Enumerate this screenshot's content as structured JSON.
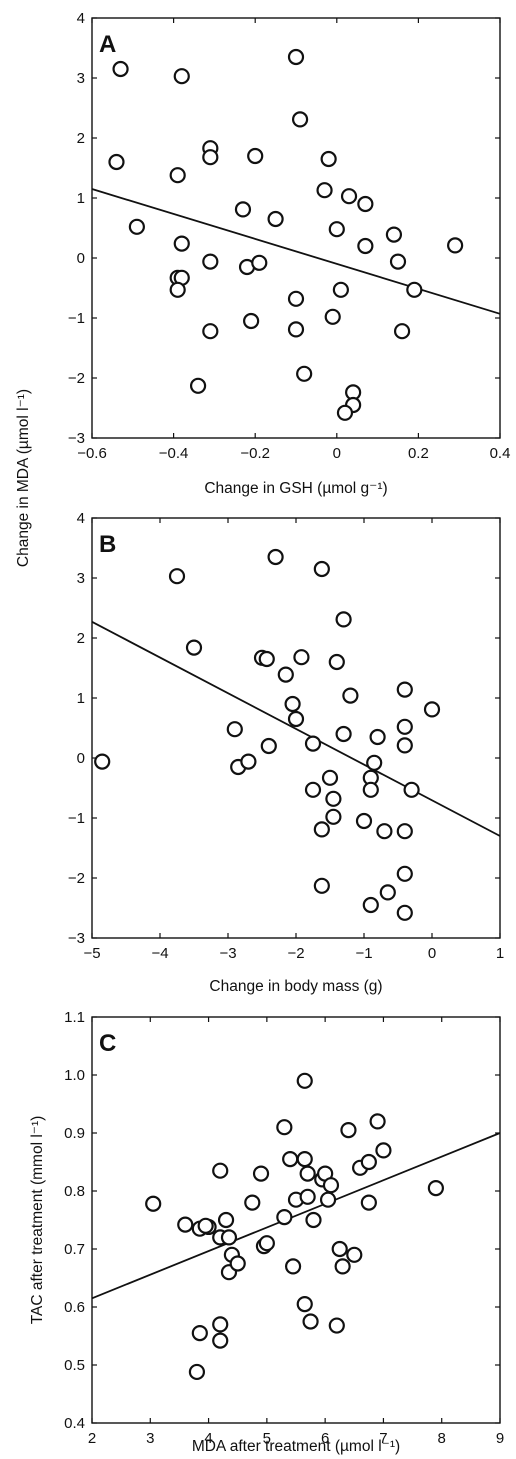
{
  "shared_ylabel_AB": "Change in MDA (µmol l⁻¹)",
  "chart_data": [
    {
      "panel": "A",
      "type": "scatter",
      "xlabel": "Change in GSH (µmol g⁻¹)",
      "ylabel": "Change in MDA (µmol l⁻¹)",
      "xlim": [
        -0.6,
        0.4
      ],
      "ylim": [
        -3,
        4
      ],
      "xticks": [
        -0.6,
        -0.4,
        -0.2,
        0,
        0.2,
        0.4
      ],
      "xtick_labels": [
        "−0.6",
        "−0.4",
        "−0.2",
        "0",
        "0.2",
        "0.4"
      ],
      "yticks": [
        -3,
        -2,
        -1,
        0,
        1,
        2,
        3,
        4
      ],
      "ytick_labels": [
        "−3",
        "−2",
        "−1",
        "0",
        "1",
        "2",
        "3",
        "4"
      ],
      "fit_line": {
        "x": [
          -0.6,
          0.4
        ],
        "y": [
          1.15,
          -0.93
        ]
      },
      "x": [
        -0.53,
        -0.38,
        -0.1,
        -0.54,
        -0.31,
        -0.31,
        -0.2,
        -0.09,
        -0.02,
        -0.39,
        -0.49,
        -0.03,
        0.03,
        0.07,
        -0.23,
        -0.15,
        0.0,
        -0.38,
        -0.22,
        -0.19,
        0.07,
        0.14,
        0.29,
        -0.31,
        -0.39,
        -0.38,
        -0.39,
        0.15,
        0.19,
        0.01,
        -0.21,
        -0.1,
        -0.1,
        -0.01,
        -0.31,
        0.16,
        -0.34,
        -0.08,
        0.04,
        0.04,
        0.02
      ],
      "y": [
        3.15,
        3.03,
        3.35,
        1.6,
        1.83,
        1.68,
        1.7,
        2.31,
        1.65,
        1.38,
        0.52,
        1.13,
        1.03,
        0.9,
        0.81,
        0.65,
        0.48,
        0.24,
        -0.15,
        -0.08,
        0.2,
        0.39,
        0.21,
        -0.06,
        -0.33,
        -0.33,
        -0.53,
        -0.06,
        -0.53,
        -0.53,
        -1.05,
        -0.68,
        -1.19,
        -0.98,
        -1.22,
        -1.22,
        -2.13,
        -1.93,
        -2.24,
        -2.45,
        -2.58
      ]
    },
    {
      "panel": "B",
      "type": "scatter",
      "xlabel": "Change in body mass (g)",
      "ylabel": "Change in MDA (µmol l⁻¹)",
      "xlim": [
        -5,
        1
      ],
      "ylim": [
        -3,
        4
      ],
      "xticks": [
        -5,
        -4,
        -3,
        -2,
        -1,
        0,
        1
      ],
      "xtick_labels": [
        "−5",
        "−4",
        "−3",
        "−2",
        "−1",
        "0",
        "1"
      ],
      "yticks": [
        -3,
        -2,
        -1,
        0,
        1,
        2,
        3,
        4
      ],
      "ytick_labels": [
        "−3",
        "−2",
        "−1",
        "0",
        "1",
        "2",
        "3",
        "4"
      ],
      "fit_line": {
        "x": [
          -5,
          1
        ],
        "y": [
          2.27,
          -1.3
        ]
      },
      "x": [
        -3.75,
        -2.3,
        -1.62,
        -3.5,
        -2.5,
        -2.43,
        -1.92,
        -1.3,
        -2.15,
        -1.4,
        -2.05,
        -1.2,
        -0.4,
        -2.0,
        -0.4,
        0.0,
        -2.9,
        -1.3,
        -0.8,
        -2.4,
        -1.75,
        -0.4,
        -4.85,
        -2.85,
        -2.7,
        -0.85,
        -0.3,
        -1.5,
        -0.9,
        -1.75,
        -0.9,
        -1.45,
        -1.62,
        -1.0,
        -1.45,
        -0.7,
        -0.4,
        -1.62,
        -0.4,
        -0.65,
        -0.9,
        -0.4
      ],
      "y": [
        3.03,
        3.35,
        3.15,
        1.84,
        1.67,
        1.65,
        1.68,
        2.31,
        1.39,
        1.6,
        0.9,
        1.04,
        1.14,
        0.65,
        0.52,
        0.81,
        0.48,
        0.4,
        0.35,
        0.2,
        0.24,
        0.21,
        -0.06,
        -0.15,
        -0.06,
        -0.08,
        -0.53,
        -0.33,
        -0.33,
        -0.53,
        -0.53,
        -0.68,
        -1.19,
        -1.05,
        -0.98,
        -1.22,
        -1.22,
        -2.13,
        -1.93,
        -2.24,
        -2.45,
        -2.58
      ]
    },
    {
      "panel": "C",
      "type": "scatter",
      "xlabel": "MDA after treatment (µmol l⁻¹)",
      "ylabel": "TAC after treatment (mmol l⁻¹)",
      "xlim": [
        2,
        9
      ],
      "ylim": [
        0.4,
        1.1
      ],
      "xticks": [
        2,
        3,
        4,
        5,
        6,
        7,
        8,
        9
      ],
      "xtick_labels": [
        "2",
        "3",
        "4",
        "5",
        "6",
        "7",
        "8",
        "9"
      ],
      "yticks": [
        0.4,
        0.5,
        0.6,
        0.7,
        0.8,
        0.9,
        1.0,
        1.1
      ],
      "ytick_labels": [
        "0.4",
        "0.5",
        "0.6",
        "0.7",
        "0.8",
        "0.9",
        "1.0",
        "1.1"
      ],
      "fit_line": {
        "x": [
          2,
          9
        ],
        "y": [
          0.615,
          0.9
        ]
      },
      "x": [
        3.05,
        3.6,
        3.85,
        4.0,
        4.2,
        4.2,
        4.3,
        4.4,
        4.35,
        4.5,
        4.35,
        3.95,
        4.75,
        4.9,
        4.95,
        5.0,
        5.3,
        5.3,
        5.4,
        5.5,
        5.65,
        5.65,
        5.7,
        5.7,
        5.8,
        5.95,
        6.0,
        6.05,
        6.1,
        6.25,
        6.3,
        6.4,
        6.5,
        6.6,
        6.75,
        6.75,
        6.9,
        7.0,
        7.9,
        5.45,
        5.65,
        5.75,
        6.2,
        3.85,
        4.2,
        4.2,
        3.8
      ],
      "y": [
        0.778,
        0.742,
        0.735,
        0.738,
        0.835,
        0.72,
        0.75,
        0.69,
        0.66,
        0.675,
        0.72,
        0.74,
        0.78,
        0.83,
        0.705,
        0.71,
        0.91,
        0.755,
        0.855,
        0.785,
        0.99,
        0.855,
        0.83,
        0.79,
        0.75,
        0.82,
        0.83,
        0.785,
        0.81,
        0.7,
        0.67,
        0.905,
        0.69,
        0.84,
        0.85,
        0.78,
        0.92,
        0.87,
        0.805,
        0.67,
        0.605,
        0.575,
        0.568,
        0.555,
        0.57,
        0.542,
        0.488
      ]
    }
  ]
}
